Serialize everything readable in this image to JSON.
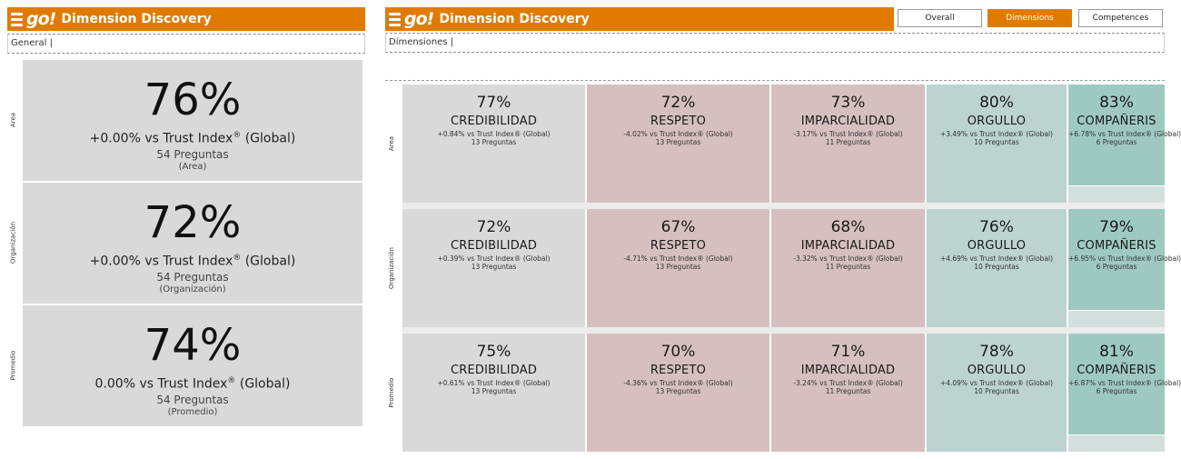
{
  "app": {
    "logo_text": "go!",
    "title": "Dimension Discovery",
    "brand_color": "#e07b00"
  },
  "left_panel": {
    "filter_label": "General |",
    "rows": [
      {
        "label": "Area",
        "pct": "76%",
        "vs": "+0.00% vs Trust Index",
        "vs_suffix": "(Global)",
        "questions": "54 Preguntas",
        "sub": "(Area)"
      },
      {
        "label": "Organización",
        "pct": "72%",
        "vs": "+0.00% vs Trust Index",
        "vs_suffix": "(Global)",
        "questions": "54 Preguntas",
        "sub": "(Organización)"
      },
      {
        "label": "Promedio",
        "pct": "74%",
        "vs": "0.00% vs Trust Index",
        "vs_suffix": "(Global)",
        "questions": "54 Preguntas",
        "sub": "(Promedio)"
      }
    ]
  },
  "right_panel": {
    "filter_label": "Dimensiones |",
    "tabs": [
      {
        "label": "Overall",
        "active": false
      },
      {
        "label": "Dimensions",
        "active": true
      },
      {
        "label": "Competences",
        "active": false
      }
    ],
    "row_labels": [
      "Area",
      "Organización",
      "Promedio"
    ],
    "rows": [
      [
        {
          "pct": "77%",
          "name": "CREDIBILIDAD",
          "vs": "+0.84% vs Trust Index® (Global)",
          "q": "13 Preguntas"
        },
        {
          "pct": "72%",
          "name": "RESPETO",
          "vs": "-4.02% vs Trust Index® (Global)",
          "q": "13 Preguntas"
        },
        {
          "pct": "73%",
          "name": "IMPARCIALIDAD",
          "vs": "-3.17% vs Trust Index® (Global)",
          "q": "11 Preguntas"
        },
        {
          "pct": "80%",
          "name": "ORGULLO",
          "vs": "+3.49% vs Trust Index® (Global)",
          "q": "10 Preguntas"
        },
        {
          "pct": "83%",
          "name": "COMPAÑERIS",
          "vs": "+6.78% vs Trust Index® (Global)",
          "q": "6 Preguntas"
        }
      ],
      [
        {
          "pct": "72%",
          "name": "CREDIBILIDAD",
          "vs": "+0.39% vs Trust Index® (Global)",
          "q": "13 Preguntas"
        },
        {
          "pct": "67%",
          "name": "RESPETO",
          "vs": "-4.71% vs Trust Index® (Global)",
          "q": "13 Preguntas"
        },
        {
          "pct": "68%",
          "name": "IMPARCIALIDAD",
          "vs": "-3.32% vs Trust Index® (Global)",
          "q": "11 Preguntas"
        },
        {
          "pct": "76%",
          "name": "ORGULLO",
          "vs": "+4.69% vs Trust Index® (Global)",
          "q": "10 Preguntas"
        },
        {
          "pct": "79%",
          "name": "COMPAÑERIS",
          "vs": "+6.95% vs Trust Index® (Global)",
          "q": "6 Preguntas"
        }
      ],
      [
        {
          "pct": "75%",
          "name": "CREDIBILIDAD",
          "vs": "+0.61% vs Trust Index® (Global)",
          "q": "13 Preguntas"
        },
        {
          "pct": "70%",
          "name": "RESPETO",
          "vs": "-4.36% vs Trust Index® (Global)",
          "q": "13 Preguntas"
        },
        {
          "pct": "71%",
          "name": "IMPARCIALIDAD",
          "vs": "-3.24% vs Trust Index® (Global)",
          "q": "11 Preguntas"
        },
        {
          "pct": "78%",
          "name": "ORGULLO",
          "vs": "+4.09% vs Trust Index® (Global)",
          "q": "10 Preguntas"
        },
        {
          "pct": "81%",
          "name": "COMPAÑERIS",
          "vs": "+6.87% vs Trust Index® (Global)",
          "q": "6 Preguntas"
        }
      ]
    ],
    "colors": {
      "credibilidad": "#d9d9d9",
      "respeto": "#d5bfbf",
      "imparcialidad": "#d5bfbf",
      "orgullo": "#bcd3cf",
      "companerismo": "#9ec9c0"
    }
  }
}
